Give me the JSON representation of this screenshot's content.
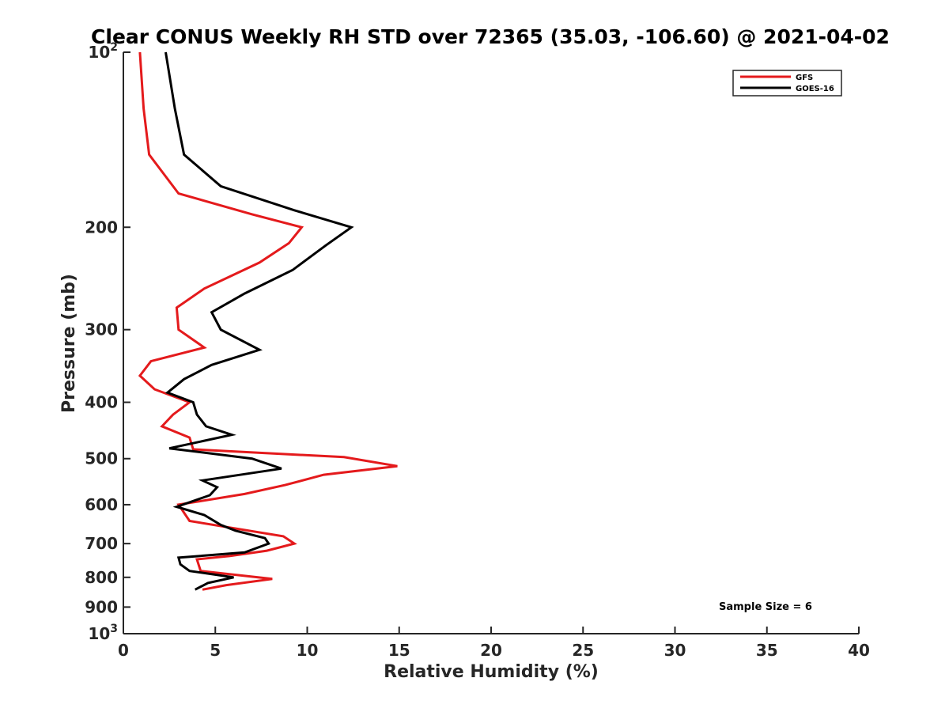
{
  "chart_data": {
    "type": "line",
    "title": "Clear CONUS Weekly RH STD over 72365 (35.03, -106.60) @ 2021-04-02",
    "xlabel": "Relative Humidity (%)",
    "ylabel": "Pressure (mb)",
    "xlim": [
      0,
      40
    ],
    "ylim": [
      100,
      1000
    ],
    "y_scale": "log",
    "y_reversed": true,
    "x_ticks": [
      0,
      5,
      10,
      15,
      20,
      25,
      30,
      35,
      40
    ],
    "x_tick_labels": [
      "0",
      "5",
      "10",
      "15",
      "20",
      "25",
      "30",
      "35",
      "40"
    ],
    "y_ticks": [
      100,
      200,
      300,
      400,
      500,
      600,
      700,
      800,
      900,
      1000
    ],
    "y_tick_labels": [
      {
        "base": "10",
        "sup": "2"
      },
      {
        "base": "200"
      },
      {
        "base": "300"
      },
      {
        "base": "400"
      },
      {
        "base": "500"
      },
      {
        "base": "600"
      },
      {
        "base": "700"
      },
      {
        "base": "800"
      },
      {
        "base": "900"
      },
      {
        "base": "10",
        "sup": "3"
      }
    ],
    "grid": false,
    "legend_position": "top-right",
    "annotation": "Sample Size = 6",
    "series": [
      {
        "name": "GFS",
        "color": "#e41a1c",
        "points": [
          [
            0.9,
            100
          ],
          [
            1.1,
            125
          ],
          [
            1.4,
            150
          ],
          [
            3.0,
            175
          ],
          [
            7.0,
            190
          ],
          [
            9.7,
            200
          ],
          [
            9.0,
            213
          ],
          [
            7.4,
            230
          ],
          [
            4.4,
            255
          ],
          [
            2.9,
            275
          ],
          [
            3.0,
            300
          ],
          [
            4.4,
            322
          ],
          [
            1.5,
            340
          ],
          [
            0.9,
            360
          ],
          [
            1.7,
            380
          ],
          [
            3.6,
            400
          ],
          [
            2.7,
            420
          ],
          [
            2.1,
            440
          ],
          [
            3.6,
            460
          ],
          [
            3.8,
            482
          ],
          [
            12.0,
            497
          ],
          [
            14.9,
            515
          ],
          [
            10.9,
            533
          ],
          [
            8.8,
            555
          ],
          [
            6.6,
            575
          ],
          [
            3.0,
            600
          ],
          [
            3.6,
            640
          ],
          [
            8.7,
            680
          ],
          [
            9.3,
            700
          ],
          [
            7.8,
            720
          ],
          [
            5.8,
            735
          ],
          [
            4.0,
            745
          ],
          [
            4.2,
            780
          ],
          [
            8.1,
            805
          ],
          [
            5.6,
            825
          ],
          [
            4.3,
            840
          ]
        ]
      },
      {
        "name": "GOES-16",
        "color": "#000000",
        "points": [
          [
            2.3,
            100
          ],
          [
            2.8,
            125
          ],
          [
            3.3,
            150
          ],
          [
            5.3,
            170
          ],
          [
            9.3,
            187
          ],
          [
            12.4,
            200
          ],
          [
            11.0,
            215
          ],
          [
            9.2,
            237
          ],
          [
            6.6,
            260
          ],
          [
            4.8,
            280
          ],
          [
            5.3,
            300
          ],
          [
            7.4,
            325
          ],
          [
            4.8,
            345
          ],
          [
            3.3,
            365
          ],
          [
            2.4,
            385
          ],
          [
            3.8,
            400
          ],
          [
            4.0,
            420
          ],
          [
            4.5,
            440
          ],
          [
            5.9,
            455
          ],
          [
            2.5,
            480
          ],
          [
            7.0,
            500
          ],
          [
            8.6,
            520
          ],
          [
            4.3,
            545
          ],
          [
            5.1,
            560
          ],
          [
            4.7,
            578
          ],
          [
            2.9,
            605
          ],
          [
            4.4,
            625
          ],
          [
            5.3,
            650
          ],
          [
            6.1,
            665
          ],
          [
            7.7,
            685
          ],
          [
            7.9,
            700
          ],
          [
            6.6,
            725
          ],
          [
            3.0,
            740
          ],
          [
            3.1,
            760
          ],
          [
            3.6,
            780
          ],
          [
            6.0,
            800
          ],
          [
            4.6,
            818
          ],
          [
            3.9,
            840
          ]
        ]
      }
    ]
  }
}
